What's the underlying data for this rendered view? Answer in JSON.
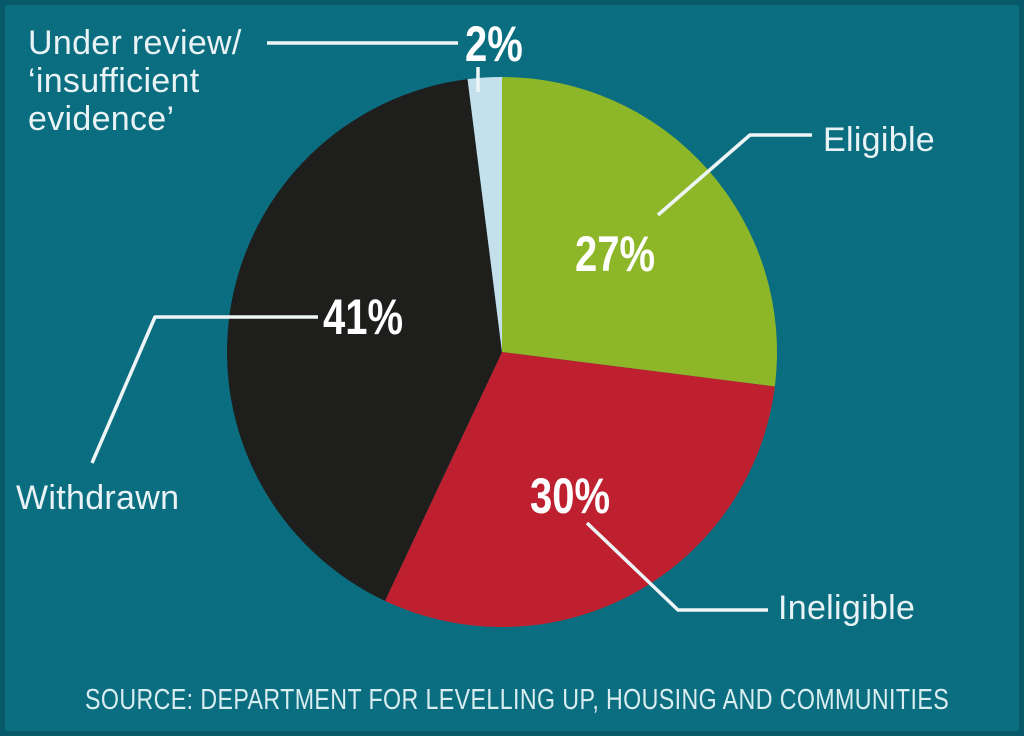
{
  "background_color": "#0a6e80",
  "colors": {
    "label_text": "#e9f2f4",
    "percent_text": "#ffffff",
    "source_text": "#d9ecef",
    "leader_line": "#eef5f6",
    "border_tint": "#0c5d6d"
  },
  "chart_data": {
    "type": "pie",
    "direction": "clockwise",
    "start_angle_deg": 0,
    "legend_position": "callout-labels",
    "slices": [
      {
        "label": "Eligible",
        "value": 27,
        "display": "27%",
        "color": "#8db728"
      },
      {
        "label": "Ineligible",
        "value": 30,
        "display": "30%",
        "color": "#bf202f"
      },
      {
        "label": "Withdrawn",
        "value": 41,
        "display": "41%",
        "color": "#1e1e1c"
      },
      {
        "label": "Under review/ ‘insufficient evidence’",
        "value": 2,
        "display": "2%",
        "color": "#c4e1eb"
      }
    ],
    "title": "",
    "source": "SOURCE: DEPARTMENT FOR LEVELLING UP, HOUSING AND COMMUNITIES"
  },
  "callouts": {
    "eligible": "Eligible",
    "ineligible": "Ineligible",
    "withdrawn": "Withdrawn",
    "under_review": "Under review/\n‘insufficient\nevidence’"
  }
}
